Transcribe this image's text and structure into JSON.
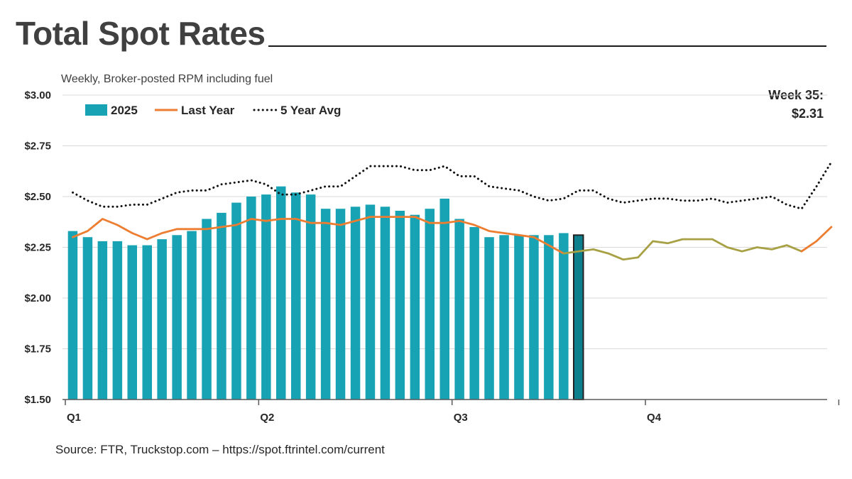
{
  "header": {
    "title": "Total Spot Rates",
    "subtitle": "Weekly, Broker-posted RPM including fuel"
  },
  "callout": {
    "line1": "Week 35:",
    "line2": "$2.31"
  },
  "footer": {
    "source": "Source: FTR, Truckstop.com – https://spot.ftrintel.com/current"
  },
  "colors": {
    "bar": "#17A3B3",
    "bar_highlight": "#0E7F8C",
    "bar_highlight_border": "#222222",
    "last_year": "#ED7D31",
    "last_year_faded": "#A8A044",
    "five_year": "#111111",
    "grid": "#D9D9D9"
  },
  "chart_data": {
    "type": "bar",
    "title": "Total Spot Rates",
    "subtitle": "Weekly, Broker-posted RPM including fuel",
    "y_ticks": [
      "$1.50",
      "$1.75",
      "$2.00",
      "$2.25",
      "$2.50",
      "$2.75",
      "$3.00"
    ],
    "ylim": [
      1.5,
      3.0
    ],
    "x_quarter_labels": [
      "Q1",
      "Q2",
      "Q3",
      "Q4"
    ],
    "legend": [
      "2025",
      "Last Year",
      "5 Year Avg"
    ],
    "legend_position": "top-left",
    "grid": true,
    "weeks_total": 52,
    "series": [
      {
        "name": "2025",
        "type": "bar",
        "values": [
          2.33,
          2.3,
          2.28,
          2.28,
          2.26,
          2.26,
          2.29,
          2.31,
          2.33,
          2.39,
          2.42,
          2.47,
          2.5,
          2.51,
          2.55,
          2.52,
          2.51,
          2.44,
          2.44,
          2.45,
          2.46,
          2.45,
          2.43,
          2.41,
          2.44,
          2.49,
          2.39,
          2.35,
          2.3,
          2.31,
          2.31,
          2.31,
          2.31,
          2.32,
          2.31
        ]
      },
      {
        "name": "Last Year",
        "type": "line",
        "values": [
          2.3,
          2.33,
          2.39,
          2.36,
          2.32,
          2.29,
          2.32,
          2.34,
          2.34,
          2.34,
          2.35,
          2.36,
          2.39,
          2.38,
          2.39,
          2.39,
          2.37,
          2.37,
          2.36,
          2.38,
          2.4,
          2.4,
          2.4,
          2.4,
          2.37,
          2.37,
          2.38,
          2.36,
          2.33,
          2.32,
          2.31,
          2.3,
          2.26,
          2.22,
          2.23,
          2.24,
          2.22,
          2.19,
          2.2,
          2.28,
          2.27,
          2.29,
          2.29,
          2.29,
          2.25,
          2.23,
          2.25,
          2.24,
          2.26,
          2.23,
          2.28,
          2.35
        ]
      },
      {
        "name": "5 Year Avg",
        "type": "line",
        "values": [
          2.52,
          2.48,
          2.45,
          2.45,
          2.46,
          2.46,
          2.49,
          2.52,
          2.53,
          2.53,
          2.56,
          2.57,
          2.58,
          2.56,
          2.51,
          2.51,
          2.53,
          2.55,
          2.55,
          2.6,
          2.65,
          2.65,
          2.65,
          2.63,
          2.63,
          2.65,
          2.6,
          2.6,
          2.55,
          2.54,
          2.53,
          2.5,
          2.48,
          2.49,
          2.53,
          2.53,
          2.49,
          2.47,
          2.48,
          2.49,
          2.49,
          2.48,
          2.48,
          2.49,
          2.47,
          2.48,
          2.49,
          2.5,
          2.46,
          2.44,
          2.55,
          2.67
        ]
      }
    ],
    "annotation": "Week 35: $2.31"
  }
}
